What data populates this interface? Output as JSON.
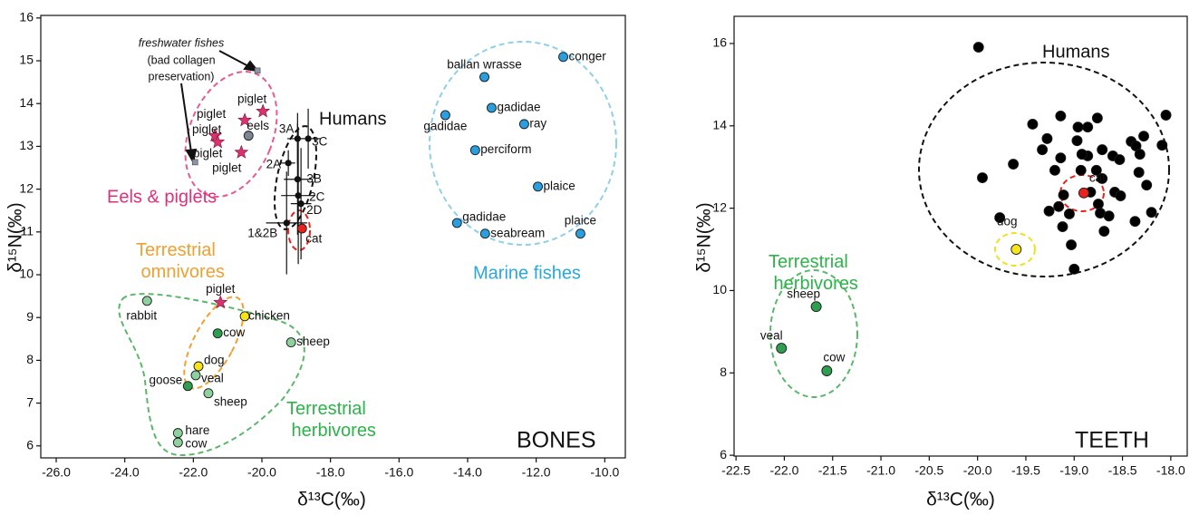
{
  "chart_data": [
    {
      "type": "scatter",
      "xlim": [
        -26.45,
        -9.4
      ],
      "ylim": [
        5.72,
        16.06
      ],
      "xticks": [
        {
          "value": -26,
          "label": "-26.0"
        },
        {
          "value": -24,
          "label": "-24.0"
        },
        {
          "value": -22,
          "label": "-22.0"
        },
        {
          "value": -20,
          "label": "-20.0"
        },
        {
          "value": -18,
          "label": "-18.0"
        },
        {
          "value": -16,
          "label": "-16.0"
        },
        {
          "value": -14,
          "label": "-14.0"
        },
        {
          "value": -12,
          "label": "-12.0"
        },
        {
          "value": -10,
          "label": "-10.0"
        }
      ],
      "yticks": [
        6,
        7,
        8,
        9,
        10,
        11,
        12,
        13,
        14,
        15,
        16
      ],
      "xlabel": "δ¹³C(‰)",
      "ylabel": "δ¹⁵N(‰)",
      "panel_label": "BONES",
      "annotations": [
        "(bad collagen",
        "preservation)"
      ],
      "series": [
        {
          "name": "Marine fishes",
          "name_color": "#29a8e0",
          "color": "#2a9fe0",
          "marker": "circle",
          "labels": [
            "conger",
            "ballan wrasse",
            "gadidae",
            "gadidae",
            "ray",
            "perciform",
            "plaice",
            "gadidae",
            "seabream",
            "plaice"
          ],
          "x": [
            -11.21,
            -13.51,
            -13.3,
            -14.65,
            -12.35,
            -13.78,
            -11.95,
            -14.31,
            -13.49,
            -10.71
          ],
          "values": [
            15.09,
            14.62,
            13.9,
            13.73,
            13.52,
            12.91,
            12.06,
            11.21,
            10.96,
            10.96
          ]
        },
        {
          "name": "Humans",
          "name_color": "#111111",
          "color": "#111111",
          "marker": "dot",
          "labels": [
            "3A",
            "3C",
            "2A",
            "3B",
            "2C",
            "2D",
            "1&2B"
          ],
          "x": [
            -18.96,
            -18.65,
            -19.23,
            -18.96,
            -18.94,
            -18.86,
            -19.28
          ],
          "values": [
            13.18,
            13.18,
            12.61,
            12.23,
            11.85,
            11.66,
            11.21
          ],
          "xerr": [
            0.3,
            0.35,
            0.2,
            0.4,
            0.5,
            0.3,
            0.6
          ],
          "yerr": [
            0.6,
            0.7,
            0.3,
            1.3,
            1.6,
            1.3,
            1.2
          ]
        },
        {
          "color": "#e8231d",
          "marker": "circle",
          "labels": [
            "cat"
          ],
          "x": [
            -18.83
          ],
          "values": [
            11.08
          ]
        },
        {
          "name": "Eels & piglets",
          "name_color": "#e0307a",
          "color": "#d8336e",
          "marker": "star",
          "labels": [
            "piglet",
            "piglet",
            "piglet",
            "piglet",
            "piglet",
            "eels"
          ],
          "markers": [
            "star",
            "star",
            "star",
            "star",
            "star",
            "circle"
          ],
          "colors": [
            "#d8336e",
            "#d8336e",
            "#d8336e",
            "#d8336e",
            "#d8336e",
            "#7f8593"
          ],
          "x": [
            -19.97,
            -20.5,
            -21.37,
            -21.29,
            -20.6,
            -20.39
          ],
          "values": [
            13.82,
            13.61,
            13.25,
            13.1,
            12.86,
            13.25
          ]
        },
        {
          "name": "freshwater fishes",
          "name_color": "#111111",
          "color": "#8e93a6",
          "marker": "square",
          "x": [
            -20.13,
            -21.95
          ],
          "values": [
            14.77,
            12.63
          ]
        },
        {
          "name": "Terrestrial omnivores",
          "name_color": "#f0a030",
          "color": "#f7e31a",
          "marker": "circle",
          "labels": [
            "piglet",
            "chicken",
            "dog"
          ],
          "markers": [
            "star",
            "circle",
            "circle"
          ],
          "colors": [
            "#d8336e",
            "#f7e31a",
            "#f7e31a"
          ],
          "x": [
            -21.21,
            -20.5,
            -21.85
          ],
          "values": [
            9.35,
            9.03,
            7.86
          ]
        },
        {
          "name": "Terrestrial herbivores",
          "name_color": "#2db34a",
          "color": "#2e9e4f",
          "marker": "circle",
          "labels": [
            "rabbit",
            "cow",
            "sheep",
            "veal",
            "goose",
            "sheep",
            "hare",
            "cow"
          ],
          "colors": [
            "#8fd19e",
            "#2e9e4f",
            "#8fd19e",
            "#8fd19e",
            "#2e9e4f",
            "#8fd19e",
            "#8fd19e",
            "#8fd19e"
          ],
          "x": [
            -23.35,
            -21.29,
            -19.15,
            -21.93,
            -22.16,
            -21.56,
            -22.45,
            -22.45
          ],
          "values": [
            9.39,
            8.63,
            8.42,
            7.65,
            7.4,
            7.23,
            6.3,
            6.08
          ]
        }
      ]
    },
    {
      "type": "scatter",
      "xlim": [
        -22.52,
        -17.83
      ],
      "ylim": [
        5.98,
        16.66
      ],
      "xticks": [
        -22.5,
        {
          "value": -22,
          "label": "-22.0"
        },
        -21.5,
        {
          "value": -21,
          "label": "-21.0"
        },
        -20.5,
        {
          "value": -20,
          "label": "-20.0"
        },
        -19.5,
        {
          "value": -19,
          "label": "-19.0"
        },
        -18.5,
        {
          "value": -18,
          "label": "-18.0"
        }
      ],
      "yticks": [
        6,
        8,
        10,
        12,
        14,
        16
      ],
      "xlabel": "δ¹³C(‰)",
      "ylabel": "δ¹⁵N(‰)",
      "panel_label": "TEETH",
      "series": [
        {
          "name": "Humans",
          "name_color": "#111111",
          "color": "#000000",
          "marker": "circle",
          "x": [
            -19.99,
            -19.95,
            -19.77,
            -19.63,
            -19.43,
            -19.33,
            -19.28,
            -19.2,
            -19.14,
            -19.11,
            -19.16,
            -19.12,
            -19.05,
            -19.03,
            -19.0,
            -18.97,
            -18.93,
            -18.86,
            -18.86,
            -18.77,
            -18.75,
            -18.73,
            -18.83,
            -18.76,
            -18.71,
            -18.69,
            -18.64,
            -18.6,
            -18.58,
            -18.53,
            -18.52,
            -18.41,
            -18.36,
            -18.32,
            -18.28,
            -18.33,
            -18.25,
            -18.2,
            -18.09,
            -18.37,
            -18.71,
            -18.92,
            -19.26,
            -19.14,
            -18.96,
            -18.05
          ],
          "values": [
            15.91,
            12.74,
            11.77,
            13.07,
            14.04,
            13.42,
            13.69,
            12.92,
            14.24,
            12.32,
            12.04,
            11.55,
            11.86,
            11.11,
            10.52,
            13.64,
            12.92,
            13.97,
            13.27,
            12.92,
            12.1,
            11.88,
            12.39,
            14.19,
            12.72,
            11.44,
            11.81,
            13.27,
            12.39,
            13.18,
            12.3,
            13.62,
            13.51,
            13.31,
            13.75,
            12.87,
            12.56,
            11.9,
            13.53,
            11.68,
            13.42,
            13.31,
            11.93,
            13.22,
            13.97,
            14.26
          ]
        },
        {
          "color": "#e8231d",
          "marker": "circle",
          "labels": [
            "cat"
          ],
          "x": [
            -18.9
          ],
          "values": [
            12.37
          ]
        },
        {
          "color": "#f7e31a",
          "marker": "circle",
          "labels": [
            "dog"
          ],
          "x": [
            -19.6
          ],
          "values": [
            11.0
          ]
        },
        {
          "name": "Terrestrial herbivores",
          "name_color": "#2db34a",
          "color": "#2e9e4f",
          "marker": "circle",
          "labels": [
            "sheep",
            "veal",
            "cow"
          ],
          "x": [
            -21.67,
            -22.03,
            -21.56
          ],
          "values": [
            9.61,
            8.6,
            8.05
          ]
        }
      ]
    }
  ]
}
